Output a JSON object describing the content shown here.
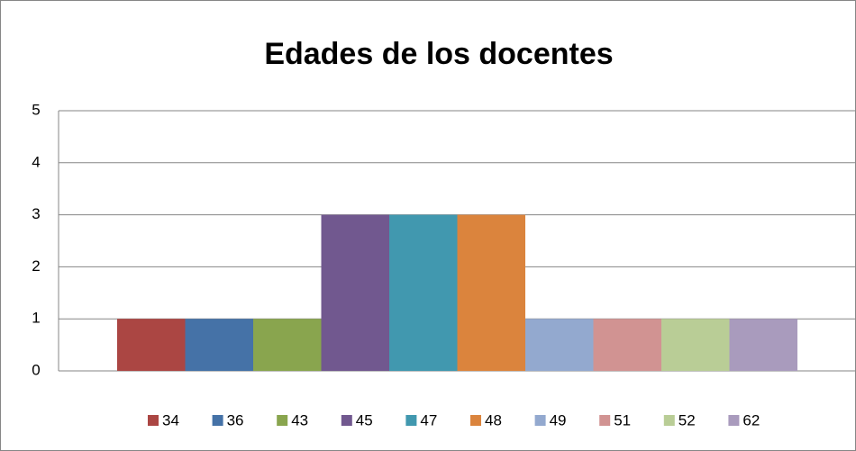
{
  "chart_data": {
    "type": "bar",
    "title": "Edades de los docentes",
    "series": [
      {
        "name": "34",
        "color": "#ab4643",
        "values": [
          1
        ]
      },
      {
        "name": "36",
        "color": "#4572a7",
        "values": [
          1
        ]
      },
      {
        "name": "43",
        "color": "#89a54e",
        "values": [
          1
        ]
      },
      {
        "name": "45",
        "color": "#71588f",
        "values": [
          3
        ]
      },
      {
        "name": "47",
        "color": "#4198af",
        "values": [
          3
        ]
      },
      {
        "name": "48",
        "color": "#db843d",
        "values": [
          3
        ]
      },
      {
        "name": "49",
        "color": "#93a9cf",
        "values": [
          1
        ]
      },
      {
        "name": "51",
        "color": "#d19392",
        "values": [
          1
        ]
      },
      {
        "name": "52",
        "color": "#b9cd96",
        "values": [
          1
        ]
      },
      {
        "name": "62",
        "color": "#a99bbd",
        "values": [
          1
        ]
      }
    ],
    "ylim": [
      0,
      5
    ],
    "yticks": [
      0,
      1,
      2,
      3,
      4,
      5
    ],
    "grid": true,
    "legend": "bottom"
  }
}
